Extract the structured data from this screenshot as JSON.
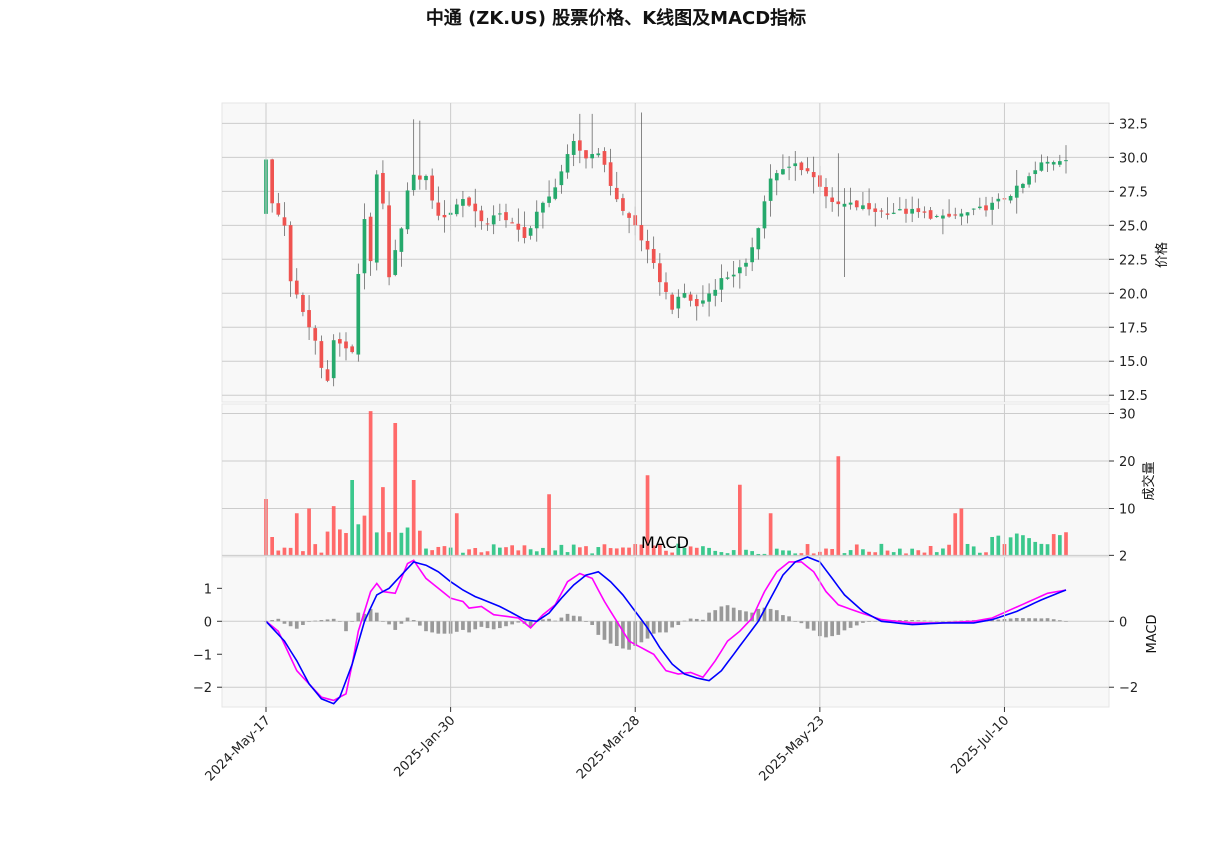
{
  "chart_data": {
    "type": "candlestick",
    "title": "中通 (ZK.US) 股票价格、K线图及MACD指标",
    "colors": {
      "up": "#26a96c",
      "down": "#ef5350",
      "vol_up": "#26c281",
      "vol_down": "#ff5a5a",
      "macd_line": "#ff00ff",
      "signal_line": "#0000ff",
      "hist": "#999999",
      "panel_bg": "#f8f8f8",
      "grid": "#cccccc"
    },
    "x_ticks": [
      "2024-May-17",
      "2025-Jan-30",
      "2025-Mar-28",
      "2025-May-23",
      "2025-Jul-10"
    ],
    "x_tick_index": [
      0,
      30,
      60,
      90,
      120
    ],
    "n_bars": 131,
    "price_panel": {
      "ylabel": "价格",
      "ylim": [
        12,
        34
      ],
      "ticks": [
        12.5,
        15.0,
        17.5,
        20.0,
        22.5,
        25.0,
        27.5,
        30.0,
        32.5
      ],
      "tick_labels": [
        "12.5",
        "15.0",
        "17.5",
        "20.0",
        "22.5",
        "25.0",
        "27.5",
        "30.0",
        "32.5"
      ],
      "anchors": [
        [
          0,
          30
        ],
        [
          1,
          26.5
        ],
        [
          3,
          25
        ],
        [
          4,
          21
        ],
        [
          6,
          18.5
        ],
        [
          8,
          16.5
        ],
        [
          9,
          14.5
        ],
        [
          10,
          13.8
        ],
        [
          11,
          16.5
        ],
        [
          13,
          16
        ],
        [
          14,
          15.5
        ],
        [
          15,
          21.5
        ],
        [
          16,
          25.5
        ],
        [
          17,
          22.5
        ],
        [
          18,
          28.5
        ],
        [
          19,
          26.5
        ],
        [
          20,
          21
        ],
        [
          22,
          25
        ],
        [
          23,
          27.5
        ],
        [
          24,
          28.5
        ],
        [
          26,
          28.5
        ],
        [
          28,
          25.5
        ],
        [
          30,
          26
        ],
        [
          32,
          27
        ],
        [
          34,
          26
        ],
        [
          36,
          25
        ],
        [
          38,
          26
        ],
        [
          40,
          25
        ],
        [
          42,
          24
        ],
        [
          44,
          26
        ],
        [
          46,
          27
        ],
        [
          48,
          29
        ],
        [
          50,
          31
        ],
        [
          52,
          30
        ],
        [
          54,
          30.5
        ],
        [
          56,
          28
        ],
        [
          58,
          26
        ],
        [
          60,
          25
        ],
        [
          62,
          23
        ],
        [
          64,
          21
        ],
        [
          66,
          19
        ],
        [
          68,
          20
        ],
        [
          70,
          19
        ],
        [
          72,
          20
        ],
        [
          74,
          21
        ],
        [
          76,
          21.5
        ],
        [
          78,
          22
        ],
        [
          80,
          25
        ],
        [
          82,
          28.5
        ],
        [
          84,
          29
        ],
        [
          86,
          29.5
        ],
        [
          88,
          29
        ],
        [
          90,
          28
        ],
        [
          92,
          26.5
        ],
        [
          95,
          26.5
        ],
        [
          100,
          26
        ],
        [
          105,
          26
        ],
        [
          110,
          25.5
        ],
        [
          115,
          26
        ],
        [
          118,
          26.5
        ],
        [
          120,
          27
        ],
        [
          123,
          28
        ],
        [
          126,
          29.5
        ],
        [
          130,
          30
        ]
      ],
      "spikes": [
        [
          0,
          32.3
        ],
        [
          24,
          32.8
        ],
        [
          25,
          32.7
        ],
        [
          51,
          33.2
        ],
        [
          53,
          33.2
        ],
        [
          61,
          33.3
        ],
        [
          93,
          30.3
        ],
        [
          94,
          21.2
        ]
      ]
    },
    "volume_panel": {
      "ylabel": "成交量",
      "ylim": [
        0,
        32
      ],
      "ticks": [
        10,
        20,
        30
      ],
      "tick_labels": [
        "10",
        "20",
        "30"
      ],
      "spikes": [
        [
          0,
          12,
          0
        ],
        [
          1,
          4,
          0
        ],
        [
          5,
          9,
          0
        ],
        [
          7,
          10,
          0
        ],
        [
          11,
          10.5,
          0
        ],
        [
          14,
          16,
          1
        ],
        [
          16,
          8.5,
          0
        ],
        [
          17,
          30.5,
          0
        ],
        [
          19,
          14.5,
          0
        ],
        [
          21,
          28,
          0
        ],
        [
          23,
          6,
          1
        ],
        [
          24,
          16,
          0
        ],
        [
          31,
          9,
          0
        ],
        [
          46,
          13,
          0
        ],
        [
          62,
          17,
          0
        ],
        [
          77,
          15,
          0
        ],
        [
          82,
          9,
          0
        ],
        [
          93,
          21,
          0
        ],
        [
          112,
          9,
          0
        ],
        [
          113,
          10,
          0
        ],
        [
          130,
          5,
          0
        ]
      ]
    },
    "macd_panel": {
      "annotation": "MACD",
      "ylabel": "MACD",
      "ylim": [
        -2.6,
        1.95
      ],
      "left_ticks": [
        1,
        0,
        -1,
        -2
      ],
      "left_tick_labels": [
        "1",
        "0",
        "−1",
        "−2"
      ],
      "right_ticks": [
        2,
        0,
        -2
      ],
      "right_tick_labels": [
        "2",
        "0",
        "−2"
      ],
      "macd_anchors": [
        [
          0,
          0
        ],
        [
          2,
          -0.3
        ],
        [
          5,
          -1.5
        ],
        [
          7,
          -1.9
        ],
        [
          9,
          -2.3
        ],
        [
          11,
          -2.4
        ],
        [
          13,
          -2.2
        ],
        [
          14,
          -1.3
        ],
        [
          15,
          -0.3
        ],
        [
          17,
          0.9
        ],
        [
          18,
          1.15
        ],
        [
          19,
          0.9
        ],
        [
          21,
          0.85
        ],
        [
          23,
          1.75
        ],
        [
          24,
          1.85
        ],
        [
          26,
          1.3
        ],
        [
          28,
          1.0
        ],
        [
          30,
          0.7
        ],
        [
          32,
          0.6
        ],
        [
          33,
          0.4
        ],
        [
          35,
          0.45
        ],
        [
          37,
          0.2
        ],
        [
          39,
          0.15
        ],
        [
          41,
          0.1
        ],
        [
          43,
          -0.2
        ],
        [
          45,
          0.2
        ],
        [
          47,
          0.5
        ],
        [
          49,
          1.2
        ],
        [
          51,
          1.45
        ],
        [
          53,
          1.3
        ],
        [
          55,
          0.6
        ],
        [
          57,
          0.0
        ],
        [
          59,
          -0.6
        ],
        [
          61,
          -0.8
        ],
        [
          63,
          -1.0
        ],
        [
          65,
          -1.5
        ],
        [
          67,
          -1.6
        ],
        [
          69,
          -1.55
        ],
        [
          71,
          -1.7
        ],
        [
          73,
          -1.2
        ],
        [
          75,
          -0.6
        ],
        [
          77,
          -0.3
        ],
        [
          79,
          0.1
        ],
        [
          81,
          0.9
        ],
        [
          83,
          1.5
        ],
        [
          85,
          1.8
        ],
        [
          87,
          1.8
        ],
        [
          89,
          1.5
        ],
        [
          91,
          0.9
        ],
        [
          93,
          0.5
        ],
        [
          96,
          0.3
        ],
        [
          100,
          0.05
        ],
        [
          105,
          -0.05
        ],
        [
          110,
          -0.05
        ],
        [
          115,
          0.0
        ],
        [
          118,
          0.1
        ],
        [
          121,
          0.35
        ],
        [
          124,
          0.6
        ],
        [
          127,
          0.85
        ],
        [
          130,
          0.95
        ]
      ],
      "signal_anchors": [
        [
          0,
          0
        ],
        [
          3,
          -0.6
        ],
        [
          5,
          -1.2
        ],
        [
          7,
          -1.9
        ],
        [
          9,
          -2.35
        ],
        [
          11,
          -2.5
        ],
        [
          12,
          -2.3
        ],
        [
          14,
          -1.3
        ],
        [
          16,
          0.0
        ],
        [
          18,
          0.8
        ],
        [
          20,
          1.0
        ],
        [
          22,
          1.4
        ],
        [
          24,
          1.8
        ],
        [
          26,
          1.7
        ],
        [
          28,
          1.5
        ],
        [
          30,
          1.2
        ],
        [
          32,
          0.95
        ],
        [
          34,
          0.75
        ],
        [
          36,
          0.6
        ],
        [
          38,
          0.45
        ],
        [
          40,
          0.25
        ],
        [
          42,
          0.05
        ],
        [
          44,
          0.0
        ],
        [
          46,
          0.25
        ],
        [
          48,
          0.7
        ],
        [
          50,
          1.1
        ],
        [
          52,
          1.4
        ],
        [
          54,
          1.5
        ],
        [
          56,
          1.2
        ],
        [
          58,
          0.8
        ],
        [
          60,
          0.3
        ],
        [
          62,
          -0.2
        ],
        [
          64,
          -0.8
        ],
        [
          66,
          -1.3
        ],
        [
          68,
          -1.6
        ],
        [
          70,
          -1.72
        ],
        [
          72,
          -1.8
        ],
        [
          74,
          -1.5
        ],
        [
          76,
          -1.0
        ],
        [
          78,
          -0.5
        ],
        [
          80,
          0.0
        ],
        [
          82,
          0.7
        ],
        [
          84,
          1.4
        ],
        [
          86,
          1.8
        ],
        [
          88,
          1.95
        ],
        [
          90,
          1.8
        ],
        [
          92,
          1.3
        ],
        [
          94,
          0.8
        ],
        [
          97,
          0.3
        ],
        [
          100,
          0.0
        ],
        [
          105,
          -0.1
        ],
        [
          110,
          -0.05
        ],
        [
          115,
          -0.05
        ],
        [
          118,
          0.05
        ],
        [
          122,
          0.3
        ],
        [
          126,
          0.65
        ],
        [
          130,
          0.95
        ]
      ]
    }
  }
}
